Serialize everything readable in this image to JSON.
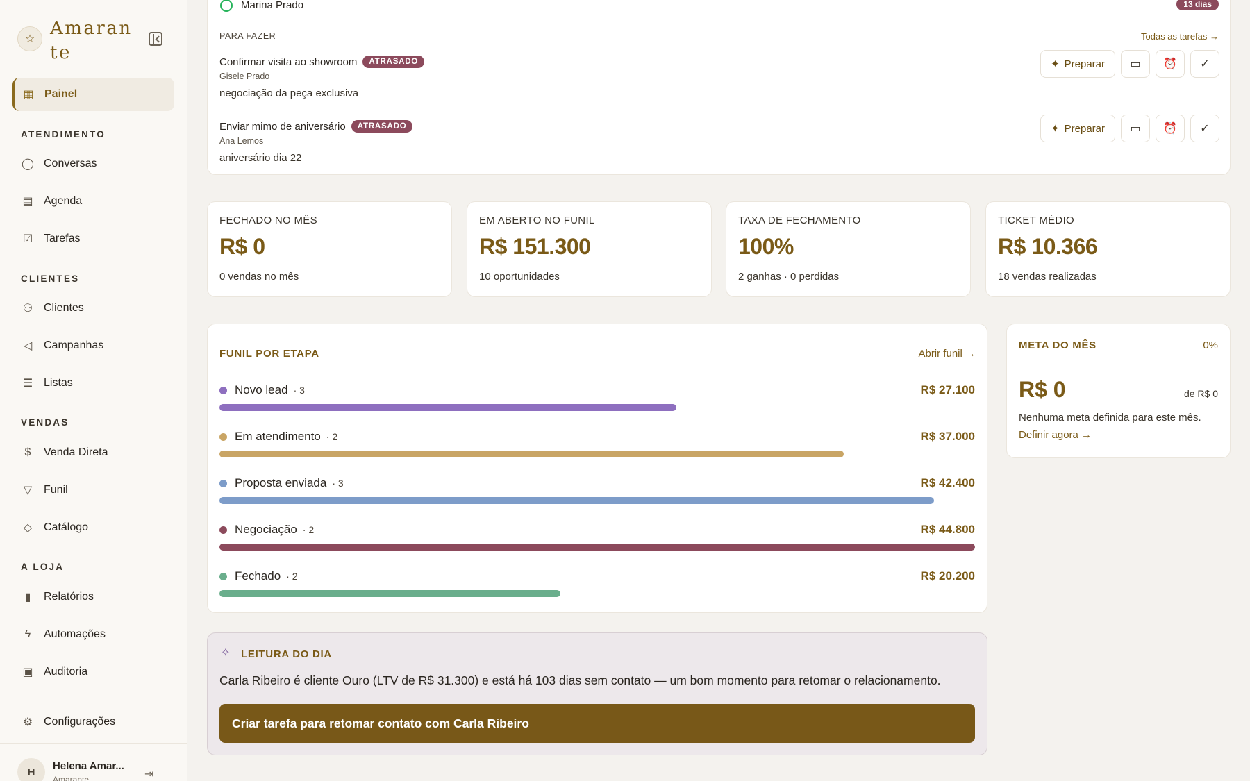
{
  "brand": {
    "name": "Amarante",
    "star_icon": "star-icon"
  },
  "nav": {
    "painel": "Painel",
    "sections": {
      "atendimento": "ATENDIMENTO",
      "clientes": "CLIENTES",
      "vendas": "VENDAS",
      "loja": "A LOJA"
    },
    "items": {
      "conversas": "Conversas",
      "agenda": "Agenda",
      "tarefas": "Tarefas",
      "clientes": "Clientes",
      "campanhas": "Campanhas",
      "listas": "Listas",
      "venda_direta": "Venda Direta",
      "funil": "Funil",
      "catalogo": "Catálogo",
      "relatorios": "Relatórios",
      "automacoes": "Automações",
      "auditoria": "Auditoria",
      "configuracoes": "Configurações"
    }
  },
  "user": {
    "initial": "H",
    "name": "Helena Amar...",
    "store": "Amarante"
  },
  "tasks": {
    "top_contact": "Marina Prado",
    "top_badge": "13 dias",
    "section_title": "PARA FAZER",
    "all_link": "Todas as tarefas →",
    "prepare_label": "Preparar",
    "items": [
      {
        "title": "Confirmar visita ao showroom",
        "badge": "ATRASADO",
        "client": "Gisele Prado",
        "note": "negociação da peça exclusiva"
      },
      {
        "title": "Enviar mimo de aniversário",
        "badge": "ATRASADO",
        "client": "Ana Lemos",
        "note": "aniversário dia 22"
      }
    ]
  },
  "kpis": [
    {
      "label": "FECHADO NO MÊS",
      "value": "R$ 0",
      "sub": "0 vendas no mês"
    },
    {
      "label": "EM ABERTO NO FUNIL",
      "value": "R$ 151.300",
      "sub": "10 oportunidades"
    },
    {
      "label": "TAXA DE FECHAMENTO",
      "value": "100%",
      "sub": "2 ganhas · 0 perdidas"
    },
    {
      "label": "TICKET MÉDIO",
      "value": "R$ 10.366",
      "sub": "18 vendas realizadas"
    }
  ],
  "funnel": {
    "title": "FUNIL POR ETAPA",
    "open_link": "Abrir funil →",
    "stages": [
      {
        "name": "Novo lead",
        "count": "· 3",
        "value": "R$ 27.100",
        "fraction": 0.605,
        "color": "#8e6fbf"
      },
      {
        "name": "Em atendimento",
        "count": "· 2",
        "value": "R$ 37.000",
        "fraction": 0.826,
        "color": "#c9a565"
      },
      {
        "name": "Proposta enviada",
        "count": "· 3",
        "value": "R$ 42.400",
        "fraction": 0.946,
        "color": "#7d9cc9"
      },
      {
        "name": "Negociação",
        "count": "· 2",
        "value": "R$ 44.800",
        "fraction": 1.0,
        "color": "#8c4a5c"
      },
      {
        "name": "Fechado",
        "count": "· 2",
        "value": "R$ 20.200",
        "fraction": 0.451,
        "color": "#6aae8c"
      }
    ]
  },
  "goal": {
    "title": "META DO MÊS",
    "percent": "0%",
    "value": "R$ 0",
    "of": "de R$ 0",
    "empty": "Nenhuma meta definida para este mês.",
    "link": "Definir agora →"
  },
  "insight": {
    "title": "LEITURA DO DIA",
    "text": "Carla Ribeiro é cliente Ouro (LTV de R$ 31.300) e está há 103 dias sem contato — um bom momento para retomar o relacionamento.",
    "button": "Criar tarefa para retomar contato com Carla Ribeiro"
  }
}
